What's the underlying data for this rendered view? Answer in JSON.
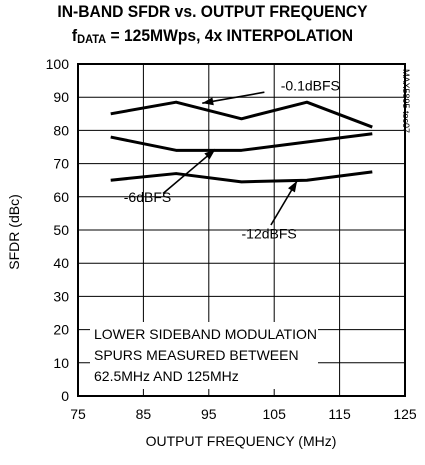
{
  "chart_data": {
    "type": "line",
    "title_line1": "IN-BAND SFDR vs. OUTPUT FREQUENCY",
    "title_line2_prefix": "f",
    "title_line2_sub": "DATA",
    "title_line2_rest": " = 125MWps, 4x INTERPOLATION",
    "xlabel": "OUTPUT FREQUENCY (MHz)",
    "ylabel": "SFDR (dBc)",
    "xlim": [
      75,
      125
    ],
    "ylim": [
      0,
      100
    ],
    "xticks": [
      75,
      85,
      95,
      105,
      115,
      125
    ],
    "yticks": [
      0,
      10,
      20,
      30,
      40,
      50,
      60,
      70,
      80,
      90,
      100
    ],
    "grid": true,
    "series": [
      {
        "name": "-0.1dBFS",
        "x": [
          80,
          90,
          100,
          110,
          120
        ],
        "y": [
          85,
          88.5,
          83.5,
          88.5,
          81
        ]
      },
      {
        "name": "-6dBFS",
        "x": [
          80,
          90,
          100,
          110,
          120
        ],
        "y": [
          78,
          74,
          74,
          76.5,
          79
        ]
      },
      {
        "name": "-12dBFS",
        "x": [
          80,
          90,
          100,
          110,
          120
        ],
        "y": [
          65,
          67,
          64.5,
          65,
          67.5
        ]
      }
    ],
    "annotation": [
      "LOWER SIDEBAND MODULATION",
      "SPURS MEASURED BETWEEN",
      "62.5MHz AND 125MHz"
    ],
    "part_code": "MAX5895 toc07"
  }
}
